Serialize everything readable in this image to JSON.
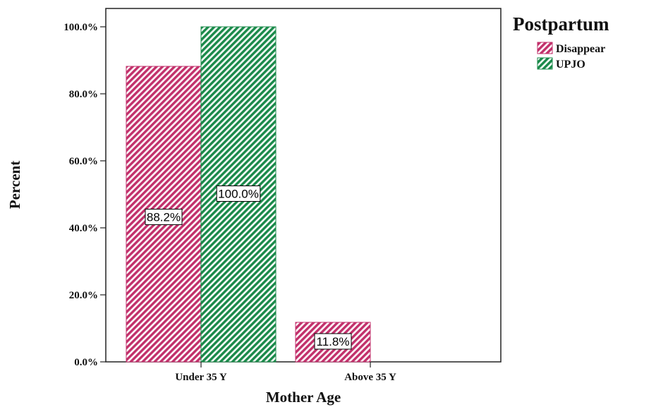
{
  "chart_data": {
    "type": "bar",
    "categories": [
      "Under 35 Y",
      "Above 35 Y"
    ],
    "series": [
      {
        "name": "Disappear",
        "values": [
          88.2,
          11.8
        ],
        "color": "#c2306b",
        "labels": [
          "88.2%",
          "11.8%"
        ]
      },
      {
        "name": "UPJO",
        "values": [
          100.0,
          0.0
        ],
        "color": "#1a8a4a",
        "labels": [
          "100.0%",
          ""
        ]
      }
    ],
    "xlabel": "Mother Age",
    "ylabel": "Percent",
    "ylim": [
      0,
      100
    ],
    "yticks": [
      "0.0%",
      "20.0%",
      "40.0%",
      "60.0%",
      "80.0%",
      "100.0%"
    ],
    "legend_title": "Postpartum",
    "legend_position": "top-right",
    "bar_pattern": "diagonal-hatch",
    "grid": false
  }
}
